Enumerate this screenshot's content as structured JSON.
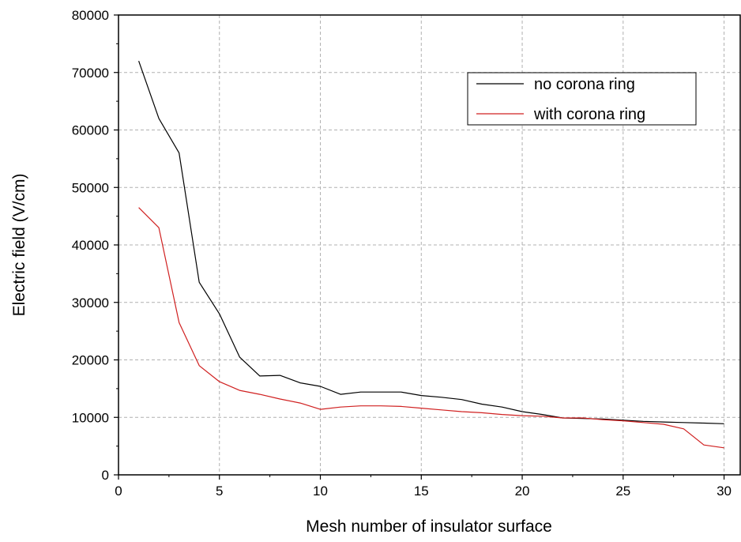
{
  "chart_data": {
    "type": "line",
    "title": "",
    "xlabel": "Mesh number of insulator surface",
    "ylabel": "Electric field (V/cm)",
    "xlim": [
      0,
      30.8
    ],
    "ylim": [
      0,
      80000
    ],
    "xticks": [
      0,
      5,
      10,
      15,
      20,
      25,
      30
    ],
    "yticks": [
      0,
      10000,
      20000,
      30000,
      40000,
      50000,
      60000,
      70000,
      80000
    ],
    "grid": true,
    "legend_position": "top-right",
    "series": [
      {
        "name": "no corona ring",
        "color": "#000000",
        "x": [
          1,
          2,
          3,
          4,
          5,
          6,
          7,
          8,
          9,
          10,
          11,
          12,
          13,
          14,
          15,
          16,
          17,
          18,
          19,
          20,
          21,
          22,
          23,
          24,
          25,
          26,
          27,
          28,
          29,
          30
        ],
        "y": [
          72000,
          62000,
          56000,
          33500,
          28000,
          20500,
          17200,
          17300,
          16000,
          15400,
          14000,
          14400,
          14400,
          14400,
          13800,
          13500,
          13100,
          12300,
          11800,
          11000,
          10500,
          9900,
          9800,
          9700,
          9500,
          9300,
          9200,
          9100,
          9000,
          8900
        ]
      },
      {
        "name": "with corona ring",
        "color": "#d02020",
        "x": [
          1,
          2,
          3,
          4,
          5,
          6,
          7,
          8,
          9,
          10,
          11,
          12,
          13,
          14,
          15,
          16,
          17,
          18,
          19,
          20,
          21,
          22,
          23,
          24,
          25,
          26,
          27,
          28,
          29,
          30
        ],
        "y": [
          46500,
          43000,
          26500,
          19000,
          16200,
          14700,
          14000,
          13200,
          12500,
          11400,
          11800,
          12000,
          12000,
          11900,
          11600,
          11300,
          11000,
          10800,
          10500,
          10300,
          10200,
          9900,
          9900,
          9600,
          9400,
          9100,
          8800,
          8000,
          5200,
          4700
        ]
      }
    ]
  }
}
